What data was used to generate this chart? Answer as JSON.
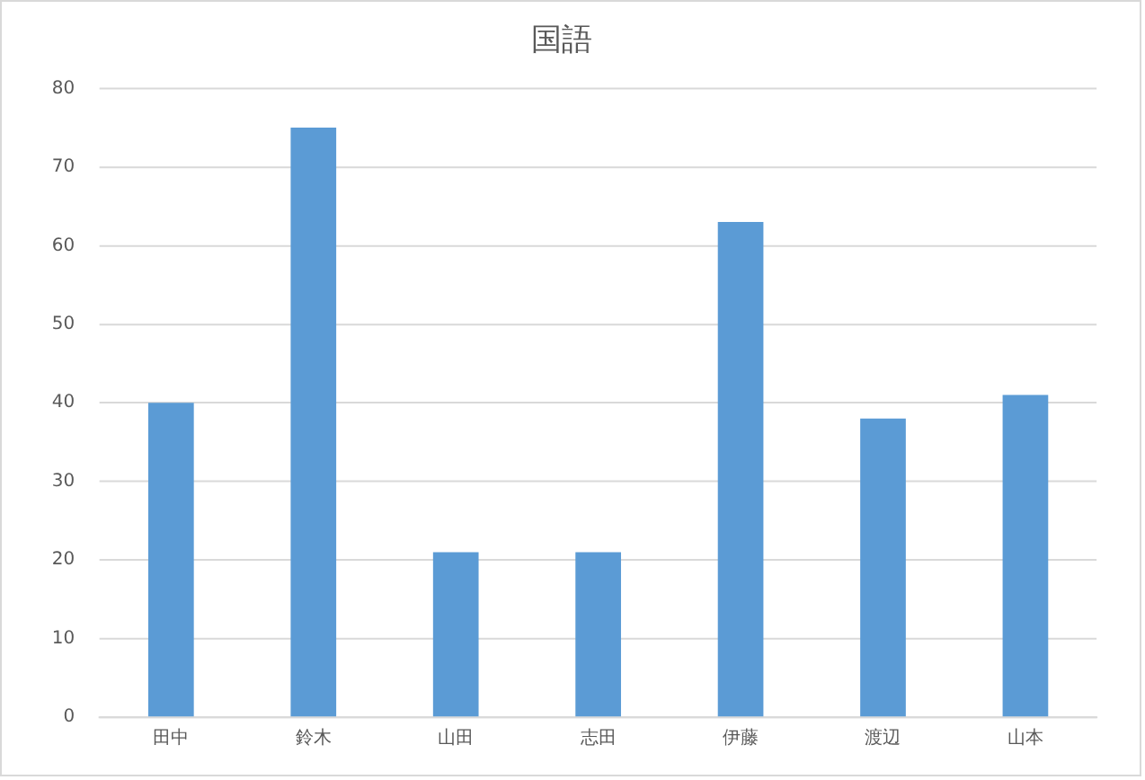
{
  "chart_data": {
    "type": "bar",
    "title": "国語",
    "categories": [
      "田中",
      "鈴木",
      "山田",
      "志田",
      "伊藤",
      "渡辺",
      "山本"
    ],
    "values": [
      40,
      75,
      21,
      21,
      63,
      38,
      41
    ],
    "color": "#5b9bd5",
    "ylim": [
      0,
      80
    ],
    "yticks": [
      0,
      10,
      20,
      30,
      40,
      50,
      60,
      70,
      80
    ],
    "grid": "y"
  }
}
